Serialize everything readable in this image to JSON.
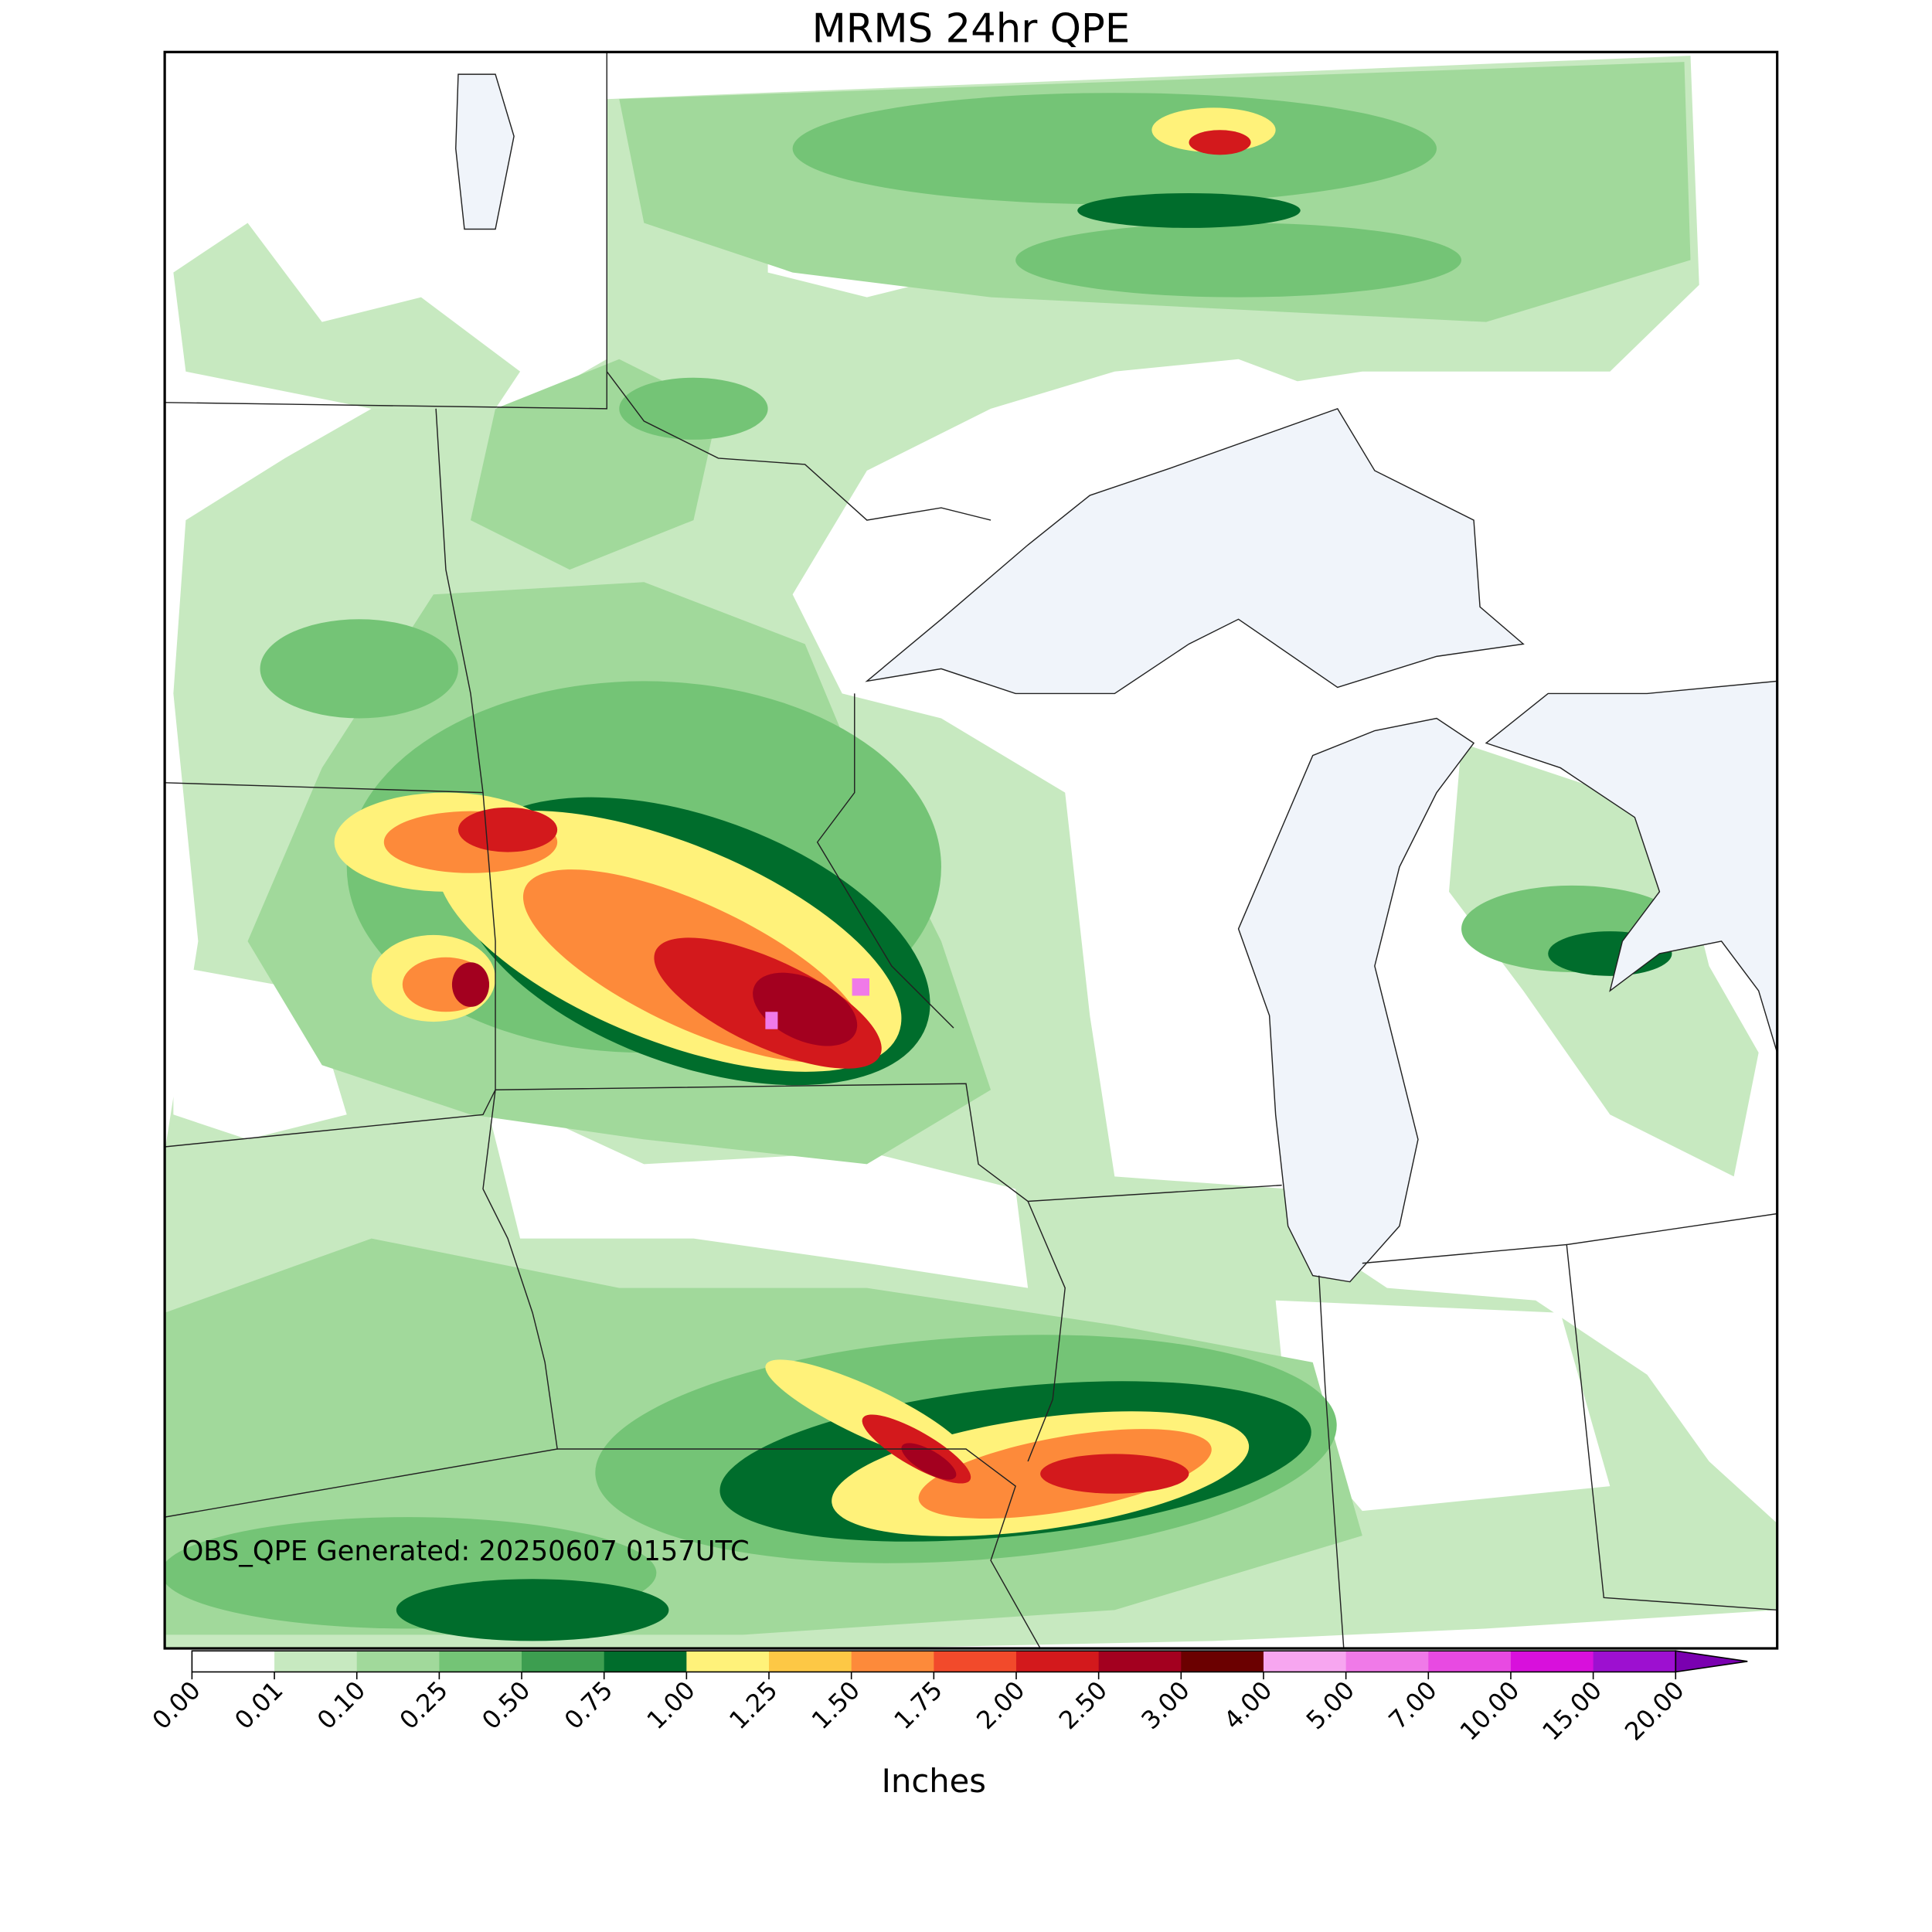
{
  "title": "MRMS 24hr QPE",
  "annotation": "OBS_QPE Generated: 20250607 0157UTC",
  "colorbar": {
    "label": "Inches",
    "ticks": [
      {
        "value": 0,
        "label": "0.00"
      },
      {
        "value": 0.01,
        "label": "0.01"
      },
      {
        "value": 0.1,
        "label": "0.10"
      },
      {
        "value": 0.25,
        "label": "0.25"
      },
      {
        "value": 0.5,
        "label": "0.50"
      },
      {
        "value": 0.75,
        "label": "0.75"
      },
      {
        "value": 1,
        "label": "1.00"
      },
      {
        "value": 1.25,
        "label": "1.25"
      },
      {
        "value": 1.5,
        "label": "1.50"
      },
      {
        "value": 1.75,
        "label": "1.75"
      },
      {
        "value": 2,
        "label": "2.00"
      },
      {
        "value": 2.5,
        "label": "2.50"
      },
      {
        "value": 3,
        "label": "3.00"
      },
      {
        "value": 4,
        "label": "4.00"
      },
      {
        "value": 5,
        "label": "5.00"
      },
      {
        "value": 7,
        "label": "7.00"
      },
      {
        "value": 10,
        "label": "10.00"
      },
      {
        "value": 15,
        "label": "15.00"
      },
      {
        "value": 20,
        "label": "20.00"
      }
    ],
    "colors": [
      "#ffffff",
      "#c7e9c0",
      "#a1d99b",
      "#74c476",
      "#3d9e50",
      "#006d2c",
      "#fff27a",
      "#fdc845",
      "#fd8a3a",
      "#f24a2b",
      "#d3191c",
      "#a3001f",
      "#6b0000",
      "#f7a6f0",
      "#f07ae8",
      "#e84ae2",
      "#d810dc",
      "#9d10d0"
    ],
    "extend_color": "#7a00b0"
  }
}
